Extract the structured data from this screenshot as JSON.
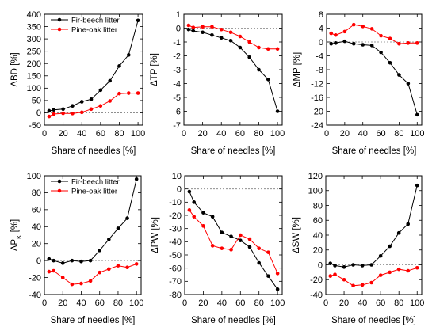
{
  "colors": {
    "fir": "#000000",
    "pine": "#ff0000",
    "zero_line": "#7f7f7f",
    "frame": "#000000"
  },
  "chart_data": [
    {
      "type": "line",
      "ylabel": "ΔBD [%]",
      "xlabel": "Share of needles [%]",
      "xlim": [
        0,
        105
      ],
      "ylim": [
        -50,
        400
      ],
      "xticks": [
        0,
        20,
        40,
        60,
        80,
        100
      ],
      "yticks": [
        -50,
        0,
        50,
        100,
        150,
        200,
        250,
        300,
        350,
        400
      ],
      "legend": {
        "position": "top-left",
        "entries": [
          "Fir-beech litter",
          "Pine-oak litter"
        ]
      },
      "series": [
        {
          "name": "Fir-beech litter",
          "color": "#000000",
          "x": [
            5,
            10,
            20,
            30,
            40,
            50,
            60,
            70,
            80,
            90,
            100
          ],
          "y": [
            8,
            12,
            15,
            28,
            45,
            55,
            92,
            130,
            190,
            235,
            375
          ]
        },
        {
          "name": "Pine-oak litter",
          "color": "#ff0000",
          "x": [
            5,
            10,
            20,
            30,
            40,
            50,
            60,
            70,
            80,
            90,
            100
          ],
          "y": [
            -15,
            -5,
            -2,
            -3,
            2,
            15,
            28,
            48,
            78,
            80,
            80
          ]
        }
      ]
    },
    {
      "type": "line",
      "ylabel": "ΔTP [%]",
      "xlabel": "Share of needles [%]",
      "xlim": [
        0,
        105
      ],
      "ylim": [
        -7,
        1
      ],
      "xticks": [
        0,
        20,
        40,
        60,
        80,
        100
      ],
      "yticks": [
        -7,
        -6,
        -5,
        -4,
        -3,
        -2,
        -1,
        0,
        1
      ],
      "series": [
        {
          "name": "Fir-beech litter",
          "color": "#000000",
          "x": [
            5,
            10,
            20,
            30,
            40,
            50,
            60,
            70,
            80,
            90,
            100
          ],
          "y": [
            -0.1,
            -0.2,
            -0.3,
            -0.5,
            -0.7,
            -0.9,
            -1.4,
            -2.1,
            -3.0,
            -3.7,
            -6.0
          ]
        },
        {
          "name": "Pine-oak litter",
          "color": "#ff0000",
          "x": [
            5,
            10,
            20,
            30,
            40,
            50,
            60,
            70,
            80,
            90,
            100
          ],
          "y": [
            0.2,
            0.05,
            0.1,
            0.1,
            -0.1,
            -0.3,
            -0.6,
            -1.0,
            -1.4,
            -1.5,
            -1.5
          ]
        }
      ]
    },
    {
      "type": "line",
      "ylabel": "ΔMP [%]",
      "xlabel": "Share of needles [%]",
      "xlim": [
        0,
        105
      ],
      "ylim": [
        -24,
        8
      ],
      "xticks": [
        0,
        20,
        40,
        60,
        80,
        100
      ],
      "yticks": [
        -24,
        -20,
        -16,
        -12,
        -8,
        -4,
        0,
        4,
        8
      ],
      "series": [
        {
          "name": "Fir-beech litter",
          "color": "#000000",
          "x": [
            5,
            10,
            20,
            30,
            40,
            50,
            60,
            70,
            80,
            90,
            100
          ],
          "y": [
            -0.5,
            -0.3,
            0.2,
            -0.5,
            -0.8,
            -1.0,
            -3.0,
            -6.0,
            -9.5,
            -12.0,
            -21.0
          ]
        },
        {
          "name": "Pine-oak litter",
          "color": "#ff0000",
          "x": [
            5,
            10,
            20,
            30,
            40,
            50,
            60,
            70,
            80,
            90,
            100
          ],
          "y": [
            2.5,
            2.0,
            3.0,
            5.0,
            4.5,
            3.8,
            1.8,
            1.0,
            -0.5,
            -0.3,
            -0.3
          ]
        }
      ]
    },
    {
      "type": "line",
      "ylabel": "ΔP_K [%]",
      "xlabel": "Share of needles [%]",
      "xlim": [
        0,
        105
      ],
      "ylim": [
        -40,
        100
      ],
      "xticks": [
        0,
        20,
        40,
        60,
        80,
        100
      ],
      "yticks": [
        -40,
        -20,
        0,
        20,
        40,
        60,
        80,
        100
      ],
      "legend": {
        "position": "top-left",
        "entries": [
          "Fir-beech litter",
          "Pine-oak litter"
        ]
      },
      "series": [
        {
          "name": "Fir-beech litter",
          "color": "#000000",
          "x": [
            5,
            10,
            20,
            30,
            40,
            50,
            60,
            70,
            80,
            90,
            100
          ],
          "y": [
            2,
            0,
            -3,
            0,
            -1,
            0,
            12,
            25,
            38,
            50,
            96
          ]
        },
        {
          "name": "Pine-oak litter",
          "color": "#ff0000",
          "x": [
            5,
            10,
            20,
            30,
            40,
            50,
            60,
            70,
            80,
            90,
            100
          ],
          "y": [
            -13,
            -12,
            -20,
            -28,
            -27,
            -24,
            -14,
            -10,
            -6,
            -8,
            -4
          ]
        }
      ]
    },
    {
      "type": "line",
      "ylabel": "ΔPW [%]",
      "xlabel": "Share of needles [%]",
      "xlim": [
        0,
        105
      ],
      "ylim": [
        -80,
        10
      ],
      "xticks": [
        0,
        20,
        40,
        60,
        80,
        100
      ],
      "yticks": [
        -80,
        -70,
        -60,
        -50,
        -40,
        -30,
        -20,
        -10,
        0,
        10
      ],
      "series": [
        {
          "name": "Fir-beech litter",
          "color": "#000000",
          "x": [
            5,
            10,
            20,
            30,
            40,
            50,
            60,
            70,
            80,
            90,
            100
          ],
          "y": [
            -2,
            -10,
            -18,
            -21,
            -33,
            -36,
            -39,
            -44,
            -56,
            -66,
            -76
          ]
        },
        {
          "name": "Pine-oak litter",
          "color": "#ff0000",
          "x": [
            5,
            10,
            20,
            30,
            40,
            50,
            60,
            70,
            80,
            90,
            100
          ],
          "y": [
            -16,
            -21,
            -28,
            -43,
            -45,
            -46,
            -35,
            -38,
            -45,
            -48,
            -64
          ]
        }
      ]
    },
    {
      "type": "line",
      "ylabel": "ΔSW [%]",
      "xlabel": "Share of needles [%]",
      "xlim": [
        0,
        105
      ],
      "ylim": [
        -40,
        120
      ],
      "xticks": [
        0,
        20,
        40,
        60,
        80,
        100
      ],
      "yticks": [
        -40,
        -20,
        0,
        20,
        40,
        60,
        80,
        100,
        120
      ],
      "series": [
        {
          "name": "Fir-beech litter",
          "color": "#000000",
          "x": [
            5,
            10,
            20,
            30,
            40,
            50,
            60,
            70,
            80,
            90,
            100
          ],
          "y": [
            2,
            -1,
            -3,
            0,
            -1,
            0,
            12,
            25,
            43,
            55,
            107
          ]
        },
        {
          "name": "Pine-oak litter",
          "color": "#ff0000",
          "x": [
            5,
            10,
            20,
            30,
            40,
            50,
            60,
            70,
            80,
            90,
            100
          ],
          "y": [
            -15,
            -13,
            -20,
            -28,
            -27,
            -24,
            -14,
            -10,
            -6,
            -8,
            -4
          ]
        }
      ]
    }
  ]
}
